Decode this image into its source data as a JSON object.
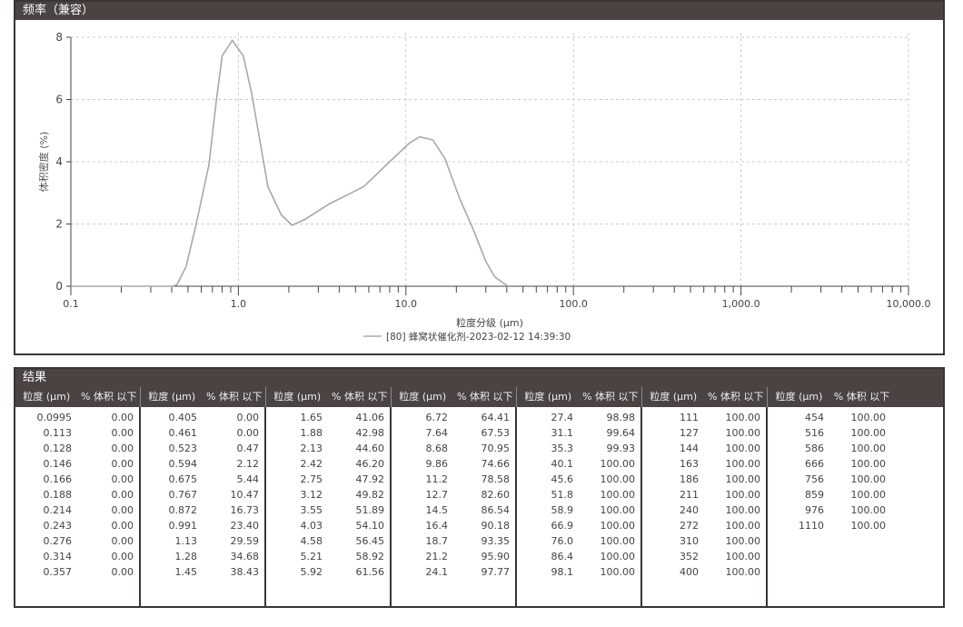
{
  "chart_panel_title": "频率（兼容）",
  "table_panel_title": "结果",
  "chart_data": {
    "type": "line",
    "xlabel": "粒度分级 (µm)",
    "ylabel": "体积密度 (%)",
    "x_scale": "log",
    "xlim": [
      0.1,
      10000
    ],
    "ylim": [
      0,
      8
    ],
    "x_ticks": [
      "0.1",
      "1.0",
      "10.0",
      "100.0",
      "1,000.0",
      "10,000.0"
    ],
    "y_ticks": [
      "0",
      "2",
      "4",
      "6",
      "8"
    ],
    "grid": true,
    "legend_position": "bottom",
    "series": [
      {
        "name": "[80] 蜂窝状催化剂-2023-02-12 14:39:30",
        "color": "#a8a8a8",
        "x": [
          0.1,
          0.404,
          0.43,
          0.488,
          0.56,
          0.667,
          0.74,
          0.8,
          0.92,
          1.07,
          1.2,
          1.5,
          1.8,
          2.09,
          2.5,
          3.5,
          5.6,
          8.0,
          10.5,
          12.1,
          14.5,
          17.1,
          21,
          24.9,
          30,
          33.9,
          40.6
        ],
        "y": [
          0,
          0,
          0.05,
          0.64,
          2.0,
          3.9,
          6.0,
          7.4,
          7.9,
          7.4,
          6.2,
          3.2,
          2.3,
          1.96,
          2.15,
          2.65,
          3.2,
          4.0,
          4.6,
          4.8,
          4.7,
          4.1,
          2.8,
          1.9,
          0.8,
          0.3,
          0
        ]
      }
    ]
  },
  "table": {
    "header_size": "粒度 (µm)",
    "header_volume": "% 体积 以下",
    "groups": [
      [
        [
          "0.0995",
          "0.00"
        ],
        [
          "0.113",
          "0.00"
        ],
        [
          "0.128",
          "0.00"
        ],
        [
          "0.146",
          "0.00"
        ],
        [
          "0.166",
          "0.00"
        ],
        [
          "0.188",
          "0.00"
        ],
        [
          "0.214",
          "0.00"
        ],
        [
          "0.243",
          "0.00"
        ],
        [
          "0.276",
          "0.00"
        ],
        [
          "0.314",
          "0.00"
        ],
        [
          "0.357",
          "0.00"
        ]
      ],
      [
        [
          "0.405",
          "0.00"
        ],
        [
          "0.461",
          "0.00"
        ],
        [
          "0.523",
          "0.47"
        ],
        [
          "0.594",
          "2.12"
        ],
        [
          "0.675",
          "5.44"
        ],
        [
          "0.767",
          "10.47"
        ],
        [
          "0.872",
          "16.73"
        ],
        [
          "0.991",
          "23.40"
        ],
        [
          "1.13",
          "29.59"
        ],
        [
          "1.28",
          "34.68"
        ],
        [
          "1.45",
          "38.43"
        ]
      ],
      [
        [
          "1.65",
          "41.06"
        ],
        [
          "1.88",
          "42.98"
        ],
        [
          "2.13",
          "44.60"
        ],
        [
          "2.42",
          "46.20"
        ],
        [
          "2.75",
          "47.92"
        ],
        [
          "3.12",
          "49.82"
        ],
        [
          "3.55",
          "51.89"
        ],
        [
          "4.03",
          "54.10"
        ],
        [
          "4.58",
          "56.45"
        ],
        [
          "5.21",
          "58.92"
        ],
        [
          "5.92",
          "61.56"
        ]
      ],
      [
        [
          "6.72",
          "64.41"
        ],
        [
          "7.64",
          "67.53"
        ],
        [
          "8.68",
          "70.95"
        ],
        [
          "9.86",
          "74.66"
        ],
        [
          "11.2",
          "78.58"
        ],
        [
          "12.7",
          "82.60"
        ],
        [
          "14.5",
          "86.54"
        ],
        [
          "16.4",
          "90.18"
        ],
        [
          "18.7",
          "93.35"
        ],
        [
          "21.2",
          "95.90"
        ],
        [
          "24.1",
          "97.77"
        ]
      ],
      [
        [
          "27.4",
          "98.98"
        ],
        [
          "31.1",
          "99.64"
        ],
        [
          "35.3",
          "99.93"
        ],
        [
          "40.1",
          "100.00"
        ],
        [
          "45.6",
          "100.00"
        ],
        [
          "51.8",
          "100.00"
        ],
        [
          "58.9",
          "100.00"
        ],
        [
          "66.9",
          "100.00"
        ],
        [
          "76.0",
          "100.00"
        ],
        [
          "86.4",
          "100.00"
        ],
        [
          "98.1",
          "100.00"
        ]
      ],
      [
        [
          "111",
          "100.00"
        ],
        [
          "127",
          "100.00"
        ],
        [
          "144",
          "100.00"
        ],
        [
          "163",
          "100.00"
        ],
        [
          "186",
          "100.00"
        ],
        [
          "211",
          "100.00"
        ],
        [
          "240",
          "100.00"
        ],
        [
          "272",
          "100.00"
        ],
        [
          "310",
          "100.00"
        ],
        [
          "352",
          "100.00"
        ],
        [
          "400",
          "100.00"
        ]
      ],
      [
        [
          "454",
          "100.00"
        ],
        [
          "516",
          "100.00"
        ],
        [
          "586",
          "100.00"
        ],
        [
          "666",
          "100.00"
        ],
        [
          "756",
          "100.00"
        ],
        [
          "859",
          "100.00"
        ],
        [
          "976",
          "100.00"
        ],
        [
          "1110",
          "100.00"
        ]
      ]
    ]
  }
}
